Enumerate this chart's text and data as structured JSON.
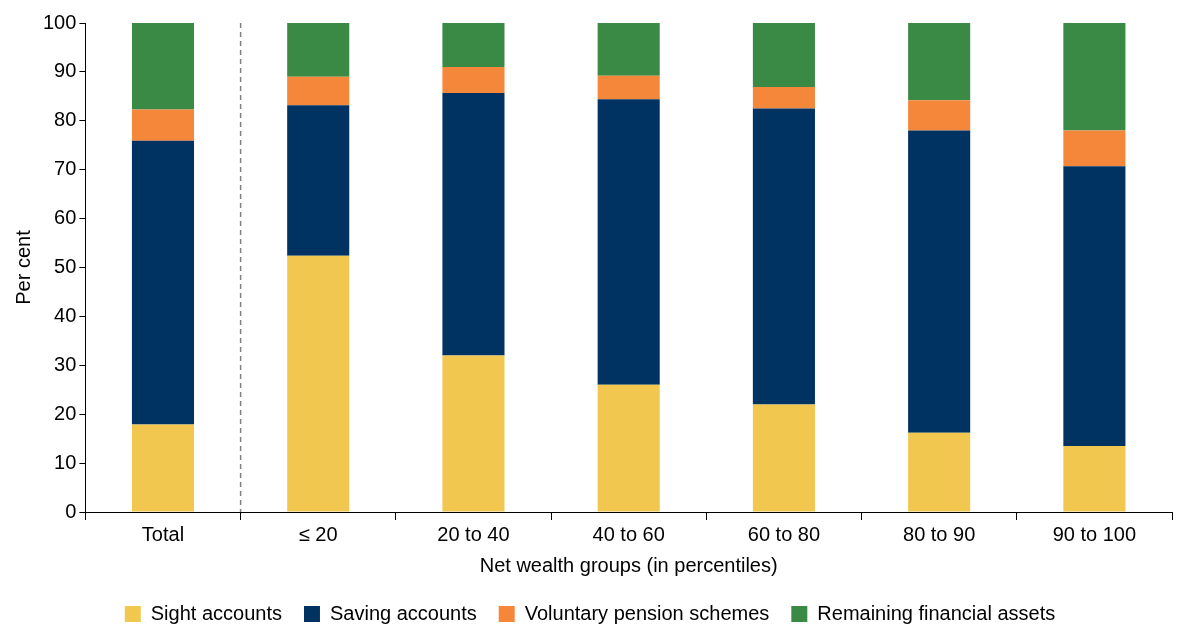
{
  "chart_data": {
    "type": "bar",
    "stacked": true,
    "xlabel": "Net wealth groups (in percentiles)",
    "ylabel": "Per cent",
    "categories": [
      "Total",
      "≤ 20",
      "20 to 40",
      "40 to 60",
      "60 to 80",
      "80 to 90",
      "90 to 100"
    ],
    "series": [
      {
        "name": "Sight accounts",
        "color": "#f2c750",
        "values": [
          17.9,
          52.4,
          32,
          26,
          22,
          16.2,
          13.5
        ]
      },
      {
        "name": "Saving accounts",
        "color": "#003262",
        "values": [
          58,
          30.8,
          53.7,
          58.4,
          60.5,
          61.8,
          57.2
        ]
      },
      {
        "name": "Voluntary pension schemes",
        "color": "#f5873a",
        "values": [
          6.4,
          5.8,
          5.3,
          4.8,
          4.4,
          6.2,
          7.3
        ]
      },
      {
        "name": "Remaining financial assets",
        "color": "#3a8a45",
        "values": [
          17.7,
          11,
          9,
          10.8,
          13.1,
          15.8,
          22
        ]
      }
    ],
    "ylim": [
      0,
      100
    ],
    "yticks": [
      0,
      10,
      20,
      30,
      40,
      50,
      60,
      70,
      80,
      90,
      100
    ],
    "grid": false,
    "legend": "bottom"
  }
}
